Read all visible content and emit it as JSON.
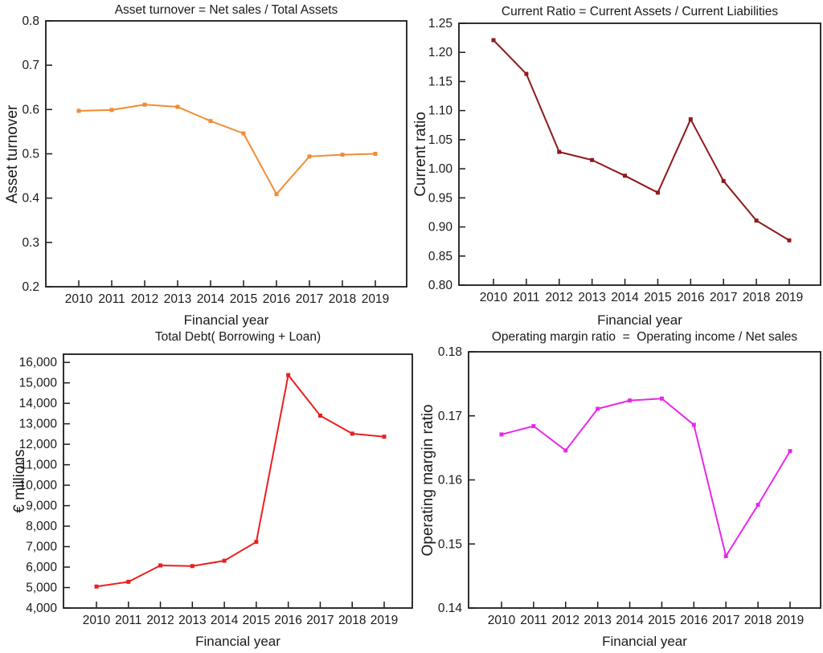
{
  "page": {
    "background": "#ffffff"
  },
  "style": {
    "axis_color": "#1a1a1a",
    "text_color": "#1a1a1a"
  },
  "chart_data": [
    {
      "id": "asset-turnover",
      "type": "line",
      "title": "Asset turnover = Net sales / Total Assets",
      "xlabel": "Financial year",
      "ylabel": "Asset turnover",
      "categories": [
        "2010",
        "2011",
        "2012",
        "2013",
        "2014",
        "2015",
        "2016",
        "2017",
        "2018",
        "2019"
      ],
      "values": [
        0.597,
        0.599,
        0.611,
        0.606,
        0.574,
        0.546,
        0.409,
        0.494,
        0.498,
        0.5
      ],
      "ylim": [
        0.2,
        0.8
      ],
      "yticks": [
        0.2,
        0.3,
        0.4,
        0.5,
        0.6,
        0.7,
        0.8
      ],
      "ytick_labels": [
        "0.2",
        "0.3",
        "0.4",
        "0.5",
        "0.6",
        "0.7",
        "0.8"
      ],
      "line_color": "#F28C34",
      "marker": "square",
      "grid": false,
      "legend": null
    },
    {
      "id": "current-ratio",
      "type": "line",
      "title": "Current Ratio = Current Assets / Current Liabilities",
      "xlabel": "Financial year",
      "ylabel": "Current ratio",
      "categories": [
        "2010",
        "2011",
        "2012",
        "2013",
        "2014",
        "2015",
        "2016",
        "2017",
        "2018",
        "2019"
      ],
      "values": [
        1.221,
        1.163,
        1.029,
        1.015,
        0.988,
        0.959,
        1.085,
        0.979,
        0.911,
        0.877
      ],
      "ylim": [
        0.8,
        1.25
      ],
      "yticks": [
        0.8,
        0.85,
        0.9,
        0.95,
        1.0,
        1.05,
        1.1,
        1.15,
        1.2,
        1.25
      ],
      "ytick_labels": [
        "0.80",
        "0.85",
        "0.90",
        "0.95",
        "1.00",
        "1.05",
        "1.10",
        "1.15",
        "1.20",
        "1.25"
      ],
      "line_color": "#8E1A1B",
      "marker": "square",
      "grid": false,
      "legend": null
    },
    {
      "id": "total-debt",
      "type": "line",
      "title": "Total Debt( Borrowing + Loan)",
      "xlabel": "Financial year",
      "ylabel": "€ millions",
      "categories": [
        "2010",
        "2011",
        "2012",
        "2013",
        "2014",
        "2015",
        "2016",
        "2017",
        "2018",
        "2019"
      ],
      "values": [
        5050,
        5280,
        6080,
        6050,
        6310,
        7230,
        15380,
        13400,
        12520,
        12370
      ],
      "ylim": [
        4000,
        16400
      ],
      "yticks": [
        4000,
        5000,
        6000,
        7000,
        8000,
        9000,
        10000,
        11000,
        12000,
        13000,
        14000,
        15000,
        16000
      ],
      "ytick_labels": [
        "4,000",
        "5,000",
        "6,000",
        "7,000",
        "8,000",
        "9,000",
        "10,000",
        "11,000",
        "12,000",
        "13,000",
        "14,000",
        "15,000",
        "16,000"
      ],
      "line_color": "#EA1F1F",
      "marker": "square",
      "grid": false,
      "legend": null
    },
    {
      "id": "operating-margin-ratio",
      "type": "line",
      "title": "Operating margin ratio  =  Operating income / Net sales",
      "xlabel": "Financial year",
      "ylabel": "Operating margin ratio",
      "categories": [
        "2010",
        "2011",
        "2012",
        "2013",
        "2014",
        "2015",
        "2016",
        "2017",
        "2018",
        "2019"
      ],
      "values": [
        0.1671,
        0.1684,
        0.1646,
        0.1711,
        0.1724,
        0.1727,
        0.1686,
        0.1481,
        0.1561,
        0.1645
      ],
      "ylim": [
        0.14,
        0.18
      ],
      "yticks": [
        0.14,
        0.15,
        0.16,
        0.17,
        0.18
      ],
      "ytick_labels": [
        "0.14",
        "0.15",
        "0.16",
        "0.17",
        "0.18"
      ],
      "line_color": "#E828E8",
      "marker": "square",
      "grid": false,
      "legend": null
    }
  ]
}
